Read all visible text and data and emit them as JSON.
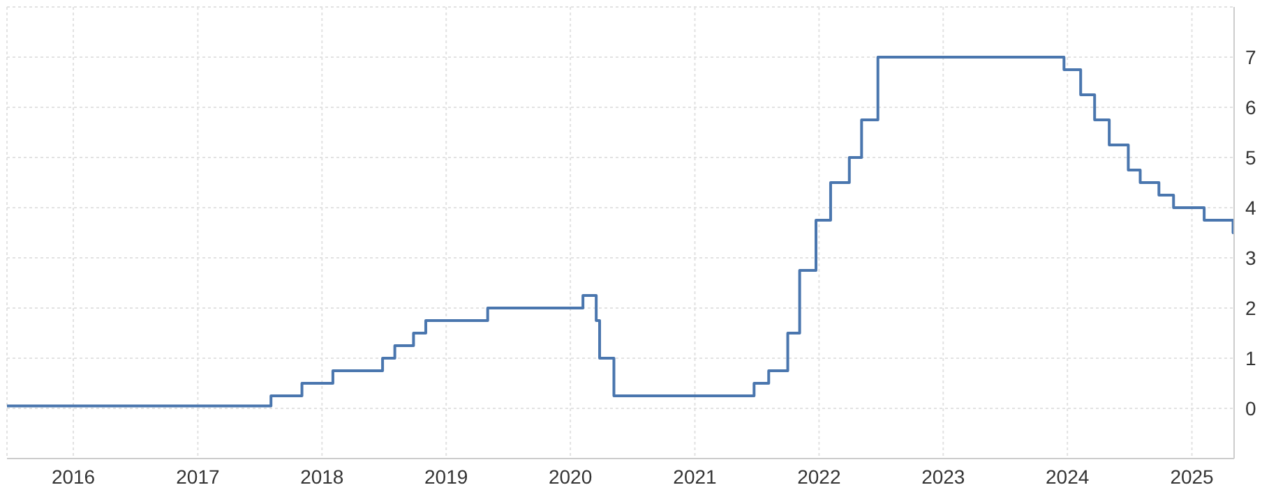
{
  "chart_data": {
    "type": "step",
    "x": [
      "2015-06-20",
      "2017-08-04",
      "2017-11-03",
      "2018-02-02",
      "2018-06-28",
      "2018-08-03",
      "2018-09-27",
      "2018-11-02",
      "2019-05-03",
      "2020-02-07",
      "2020-03-17",
      "2020-03-27",
      "2020-05-08",
      "2021-06-24",
      "2021-08-06",
      "2021-10-01",
      "2021-11-05",
      "2021-12-23",
      "2022-02-04",
      "2022-03-31",
      "2022-05-06",
      "2022-06-23",
      "2023-12-22",
      "2024-02-09",
      "2024-03-21",
      "2024-05-03",
      "2024-06-28",
      "2024-08-02",
      "2024-09-26",
      "2024-11-08",
      "2025-02-06",
      "2025-05-02",
      "2025-05-05"
    ],
    "series": [
      {
        "color": "#4a76ae",
        "values": [
          0.05,
          0.25,
          0.5,
          0.75,
          1.0,
          1.25,
          1.5,
          1.75,
          2.0,
          2.25,
          1.75,
          1.0,
          0.25,
          0.5,
          0.75,
          1.5,
          2.75,
          3.75,
          4.5,
          5.0,
          5.75,
          7.0,
          6.75,
          6.25,
          5.75,
          5.25,
          4.75,
          4.5,
          4.25,
          4.0,
          3.75,
          3.5,
          3.5
        ]
      }
    ],
    "xlim": [
      "2015-06-20",
      "2025-05-05"
    ],
    "xticks": [
      "2016",
      "2017",
      "2018",
      "2019",
      "2020",
      "2021",
      "2022",
      "2023",
      "2024",
      "2025"
    ],
    "ylim": [
      -1,
      8
    ],
    "yticks": [
      0,
      1,
      2,
      3,
      4,
      5,
      6,
      7
    ],
    "grid": true,
    "line_style": "solid"
  }
}
